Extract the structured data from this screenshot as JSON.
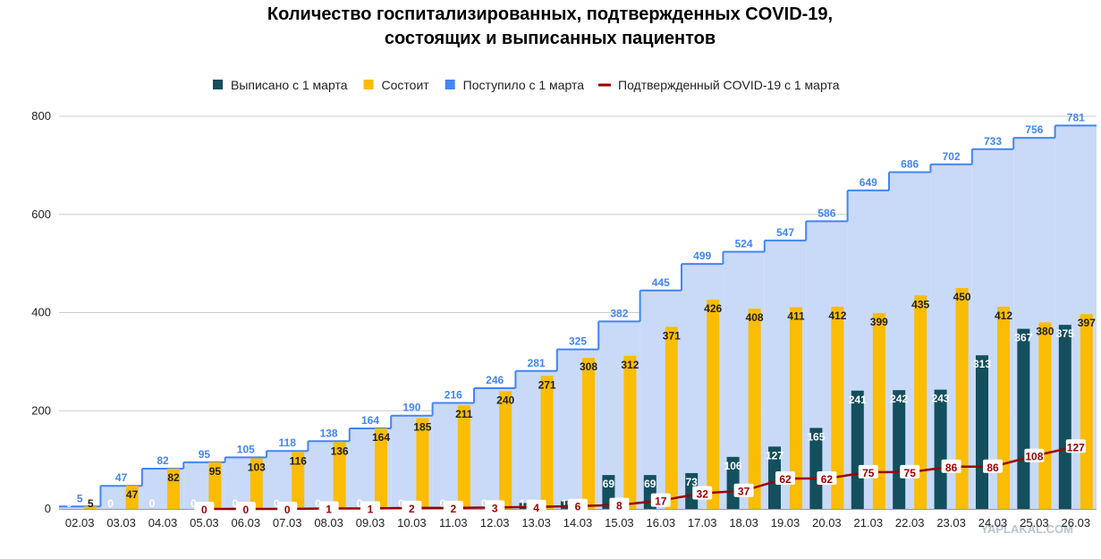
{
  "chart_data": {
    "type": "combo",
    "title": "Количество госпитализированных, подтвержденных COVID-19,",
    "subtitle": "состоящих и выписанных пациентов",
    "categories": [
      "02.03",
      "03.03",
      "04.03",
      "05.03",
      "06.03",
      "07.03",
      "08.03",
      "09.03",
      "10.03",
      "11.03",
      "12.03",
      "13.03",
      "14.03",
      "15.03",
      "16.03",
      "17.03",
      "18.03",
      "19.03",
      "20.03",
      "21.03",
      "22.03",
      "23.03",
      "24.03",
      "25.03",
      "26.03"
    ],
    "series": [
      {
        "name": "Выписано с 1 марта",
        "color": "#134f5c",
        "kind": "bar",
        "values": [
          0,
          0,
          0,
          0,
          0,
          0,
          0,
          0,
          0,
          0,
          0,
          12,
          16,
          69,
          69,
          73,
          106,
          127,
          165,
          241,
          242,
          243,
          313,
          367,
          375
        ]
      },
      {
        "name": "Состоит",
        "color": "#fbbc04",
        "kind": "bar",
        "values": [
          5,
          47,
          82,
          95,
          103,
          116,
          136,
          164,
          185,
          211,
          240,
          271,
          308,
          312,
          371,
          426,
          408,
          411,
          412,
          399,
          435,
          450,
          412,
          380,
          397
        ]
      },
      {
        "name": "Поступило с 1 марта",
        "color": "#4285f4",
        "kind": "step-area",
        "values": [
          5,
          47,
          82,
          95,
          105,
          118,
          138,
          164,
          190,
          216,
          246,
          281,
          325,
          382,
          445,
          499,
          524,
          547,
          586,
          649,
          686,
          702,
          733,
          756,
          781
        ]
      },
      {
        "name": "Подтвержденный COVID-19 с 1 марта",
        "color": "#990000",
        "kind": "line",
        "values": [
          null,
          null,
          null,
          0,
          0,
          0,
          1,
          1,
          2,
          2,
          3,
          4,
          6,
          8,
          17,
          32,
          37,
          62,
          62,
          75,
          75,
          86,
          86,
          108,
          127
        ]
      }
    ],
    "ylim": [
      0,
      800
    ],
    "yticks": [
      0,
      200,
      400,
      600,
      800
    ],
    "grid": true,
    "legend": "top",
    "watermark": "YAPLAKAL.COM"
  }
}
